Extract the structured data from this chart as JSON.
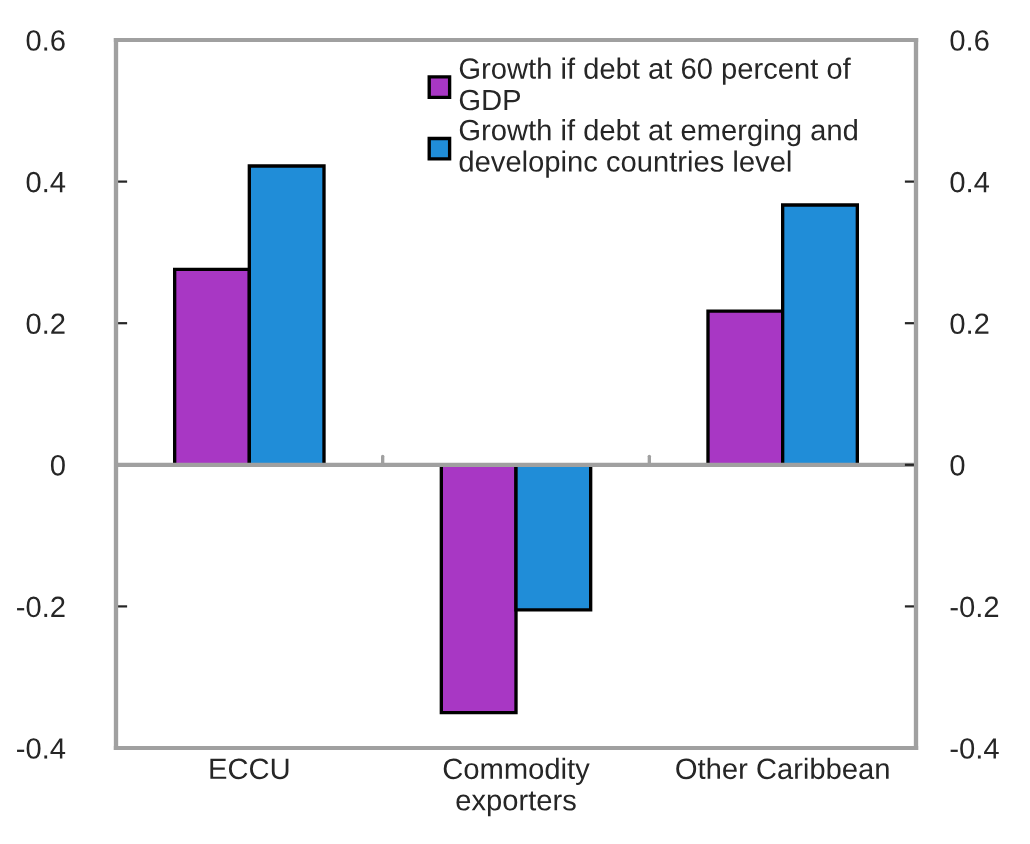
{
  "chart_data": {
    "type": "bar",
    "categories": [
      "ECCU",
      "Commodity exporters",
      "Other Caribbean"
    ],
    "series": [
      {
        "name": "Growth if debt at 60 percent of GDP",
        "color": "#a837c4",
        "values": [
          0.276,
          -0.35,
          0.217
        ]
      },
      {
        "name": "Growth if debt at emerging and developinc countries level",
        "color": "#208dd8",
        "values": [
          0.422,
          -0.205,
          0.367
        ]
      }
    ],
    "ylim": [
      -0.4,
      0.6
    ],
    "yticks": [
      -0.4,
      -0.2,
      0,
      0.2,
      0.4,
      0.6
    ],
    "y2lim": [
      -0.4,
      0.6
    ],
    "y2ticks": [
      -0.4,
      -0.2,
      0,
      0.2,
      0.4,
      0.6
    ],
    "ref_lines": [
      {
        "axis": "y",
        "value": 0,
        "color": "#a0a0a0"
      }
    ],
    "grid": false,
    "legend": "top"
  }
}
